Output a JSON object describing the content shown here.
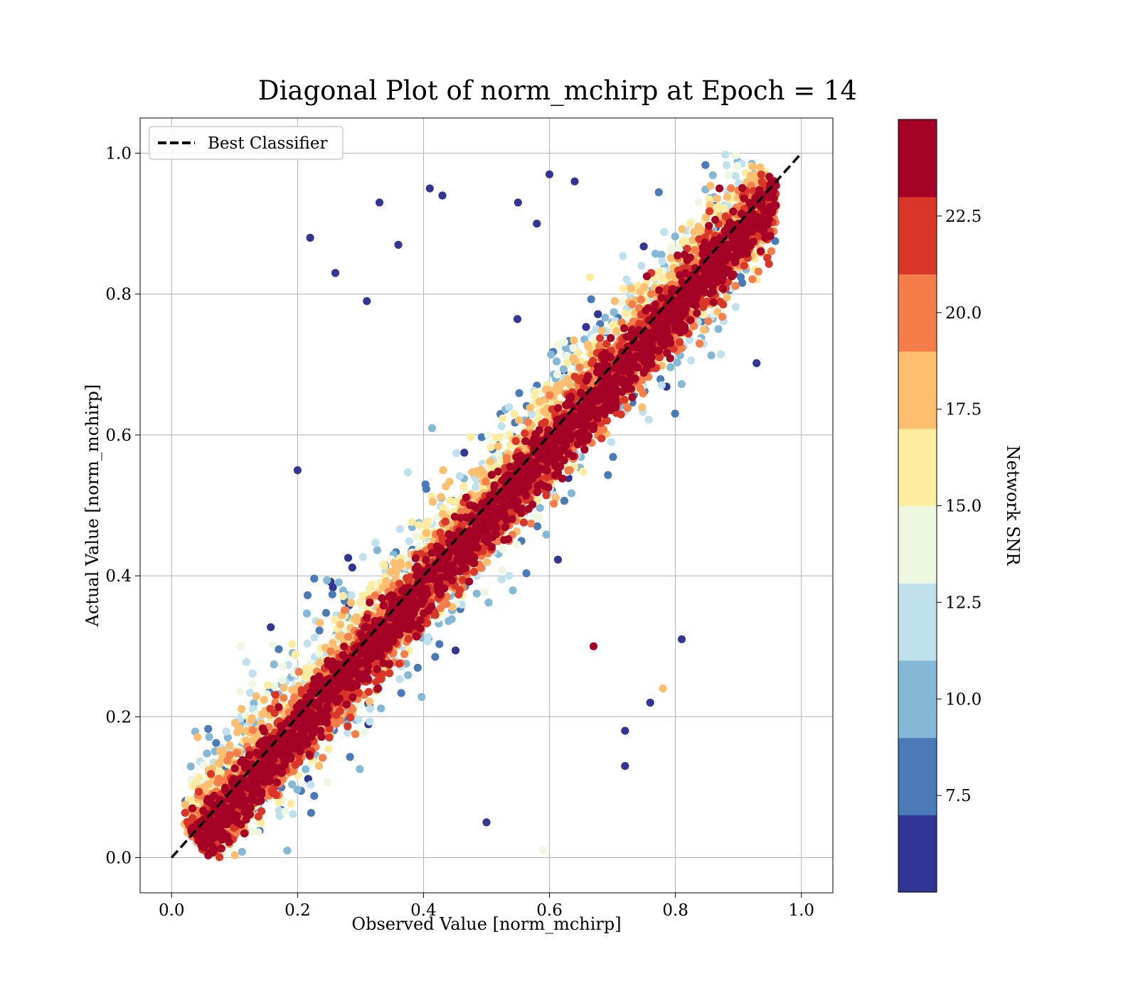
{
  "chart_data": {
    "type": "scatter",
    "title": "Diagonal Plot of norm_mchirp at Epoch = 14",
    "xlabel": "Observed Value [norm_mchirp]",
    "ylabel": "Actual Value [norm_mchirp]",
    "xlim": [
      -0.05,
      1.05
    ],
    "ylim": [
      -0.05,
      1.05
    ],
    "x_ticks": [
      0.0,
      0.2,
      0.4,
      0.6,
      0.8,
      1.0
    ],
    "y_ticks": [
      0.0,
      0.2,
      0.4,
      0.6,
      0.8,
      1.0
    ],
    "x_tick_labels": [
      "0.0",
      "0.2",
      "0.4",
      "0.6",
      "0.8",
      "1.0"
    ],
    "y_tick_labels": [
      "0.0",
      "0.2",
      "0.4",
      "0.6",
      "0.8",
      "1.0"
    ],
    "grid": true,
    "legend": {
      "position": "top-left",
      "entries": [
        "Best Classifier"
      ]
    },
    "reference_line": {
      "name": "Best Classifier",
      "x": [
        0.0,
        1.0
      ],
      "y": [
        0.0,
        1.0
      ],
      "style": "dashed",
      "color": "#000000"
    },
    "colorbar": {
      "label": "Network SNR",
      "range": [
        5.0,
        25.0
      ],
      "ticks": [
        7.5,
        10.0,
        12.5,
        15.0,
        17.5,
        20.0,
        22.5
      ],
      "tick_labels": [
        "7.5",
        "10.0",
        "12.5",
        "15.0",
        "17.5",
        "20.0",
        "22.5"
      ],
      "bins": 10,
      "colors": [
        "#313695",
        "#4a7ab7",
        "#83b8d7",
        "#bfe1ed",
        "#eef8e1",
        "#feeda0",
        "#fdbe6f",
        "#f57d4a",
        "#d93529",
        "#a50026"
      ]
    },
    "point_sample": {
      "description_of_marks": "dense scatter of points around y = x, color encodes SNR",
      "x": [
        0.11,
        0.22,
        0.26,
        0.31,
        0.33,
        0.36,
        0.41,
        0.43,
        0.55,
        0.58,
        0.6,
        0.64,
        0.78,
        0.81,
        0.72,
        0.72,
        0.67,
        0.5,
        0.2,
        0.59,
        0.76,
        0.87,
        0.9,
        0.94
      ],
      "y": [
        0.3,
        0.88,
        0.83,
        0.79,
        0.93,
        0.87,
        0.95,
        0.94,
        0.93,
        0.9,
        0.97,
        0.96,
        0.24,
        0.31,
        0.18,
        0.13,
        0.3,
        0.05,
        0.55,
        0.01,
        0.22,
        0.95,
        0.9,
        0.89
      ],
      "snr": [
        13,
        6,
        6,
        6,
        6,
        6,
        6,
        6,
        6,
        6,
        6,
        6,
        17,
        6,
        6,
        6,
        25,
        6,
        6,
        14,
        6,
        25,
        25,
        25
      ]
    }
  }
}
